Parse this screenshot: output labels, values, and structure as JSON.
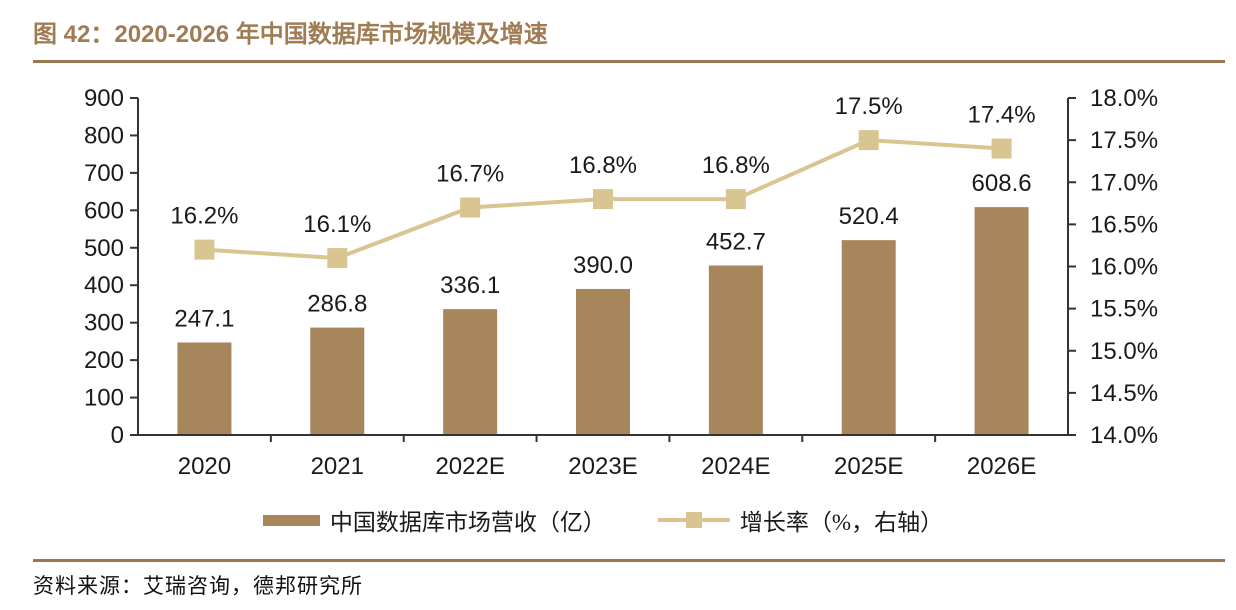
{
  "figure": {
    "title": "图 42：2020-2026 年中国数据库市场规模及增速",
    "source": "资料来源：艾瑞咨询，德邦研究所"
  },
  "colors": {
    "title": "#A07C54",
    "rule": "#997851",
    "bar": "#A8865C",
    "line": "#D9C592",
    "axis": "#333333",
    "text": "#1A1A1A"
  },
  "chart_data": {
    "type": "bar",
    "subtype": "bar-and-line-dual-axis",
    "categories": [
      "2020",
      "2021",
      "2022E",
      "2023E",
      "2024E",
      "2025E",
      "2026E"
    ],
    "series": [
      {
        "name": "中国数据库市场营收（亿）",
        "type": "bar",
        "axis": "left",
        "values": [
          247.1,
          286.8,
          336.1,
          390.0,
          452.7,
          520.4,
          608.6
        ]
      },
      {
        "name": "增长率（%，右轴）",
        "type": "line",
        "axis": "right",
        "values": [
          16.2,
          16.1,
          16.7,
          16.8,
          16.8,
          17.5,
          17.4
        ]
      }
    ],
    "bar_labels": [
      "247.1",
      "286.8",
      "336.1",
      "390.0",
      "452.7",
      "520.4",
      "608.6"
    ],
    "line_labels": [
      "16.2%",
      "16.1%",
      "16.7%",
      "16.8%",
      "16.8%",
      "17.5%",
      "17.4%"
    ],
    "left_axis": {
      "min": 0,
      "max": 900,
      "step": 100,
      "ticks": [
        "900",
        "800",
        "700",
        "600",
        "500",
        "400",
        "300",
        "200",
        "100",
        "0"
      ]
    },
    "right_axis": {
      "min": 14.0,
      "max": 18.0,
      "step": 0.5,
      "ticks": [
        "18.0%",
        "17.5%",
        "17.0%",
        "16.5%",
        "16.0%",
        "15.5%",
        "15.0%",
        "14.5%",
        "14.0%"
      ]
    },
    "grid": false,
    "legend_position": "bottom-center",
    "legend": [
      {
        "label": "中国数据库市场营收（亿）",
        "swatch": "bar"
      },
      {
        "label": "增长率（%，右轴）",
        "swatch": "line"
      }
    ]
  }
}
